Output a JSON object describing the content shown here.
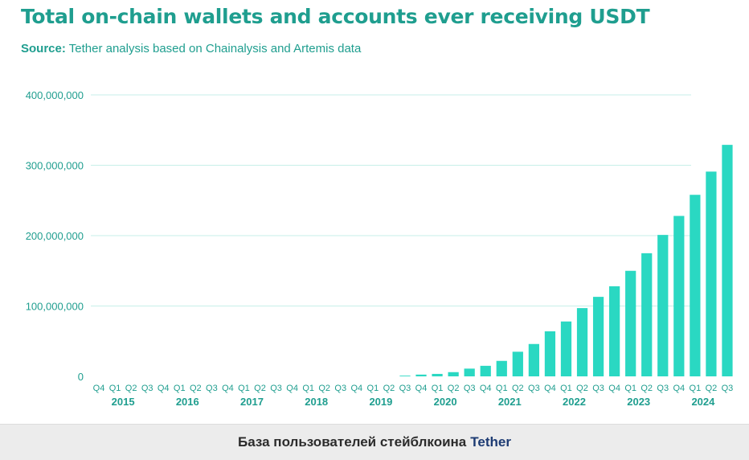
{
  "header": {
    "title": "Total on-chain wallets and accounts ever receiving USDT",
    "source_label": "Source:",
    "source_text": "Tether analysis based on Chainalysis and Artemis data"
  },
  "caption": {
    "text": "База пользователей стейблкоина",
    "link": "Tether"
  },
  "colors": {
    "bar": "#2ad8c2",
    "text": "#1f9e8f",
    "grid": "#c7efe8"
  },
  "chart_data": {
    "type": "bar",
    "title": "Total on-chain wallets and accounts ever receiving USDT",
    "xlabel": "",
    "ylabel": "",
    "ylim": [
      0,
      400000000
    ],
    "yticks": [
      0,
      100000000,
      200000000,
      300000000,
      400000000
    ],
    "ytick_labels": [
      "0",
      "100,000,000",
      "200,000,000",
      "300,000,000",
      "400,000,000"
    ],
    "grid": true,
    "categories": [
      "Q4",
      "Q1",
      "Q2",
      "Q3",
      "Q4",
      "Q1",
      "Q2",
      "Q3",
      "Q4",
      "Q1",
      "Q2",
      "Q3",
      "Q4",
      "Q1",
      "Q2",
      "Q3",
      "Q4",
      "Q1",
      "Q2",
      "Q3",
      "Q4",
      "Q1",
      "Q2",
      "Q3",
      "Q4",
      "Q1",
      "Q2",
      "Q3",
      "Q4",
      "Q1",
      "Q2",
      "Q3",
      "Q4",
      "Q1",
      "Q2",
      "Q3",
      "Q4",
      "Q1",
      "Q2",
      "Q3"
    ],
    "years": [
      {
        "label": "2015",
        "start": 0,
        "end": 3
      },
      {
        "label": "2016",
        "start": 4,
        "end": 7
      },
      {
        "label": "2017",
        "start": 8,
        "end": 11
      },
      {
        "label": "2018",
        "start": 12,
        "end": 15
      },
      {
        "label": "2019",
        "start": 16,
        "end": 19
      },
      {
        "label": "2020",
        "start": 20,
        "end": 23
      },
      {
        "label": "2021",
        "start": 24,
        "end": 27
      },
      {
        "label": "2022",
        "start": 28,
        "end": 31
      },
      {
        "label": "2023",
        "start": 32,
        "end": 35
      },
      {
        "label": "2024",
        "start": 36,
        "end": 39
      }
    ],
    "series": [
      {
        "values": [
          0,
          0,
          0,
          0,
          0,
          0,
          0,
          0,
          0,
          0,
          0,
          0,
          0,
          0,
          0,
          0,
          0,
          0,
          0,
          1000000,
          2500000,
          3500000,
          6000000,
          11000000,
          15000000,
          22000000,
          35000000,
          46000000,
          64000000,
          78000000,
          97000000,
          113000000,
          128000000,
          150000000,
          175000000,
          201000000,
          228000000,
          258000000,
          291000000,
          329000000
        ]
      }
    ]
  }
}
